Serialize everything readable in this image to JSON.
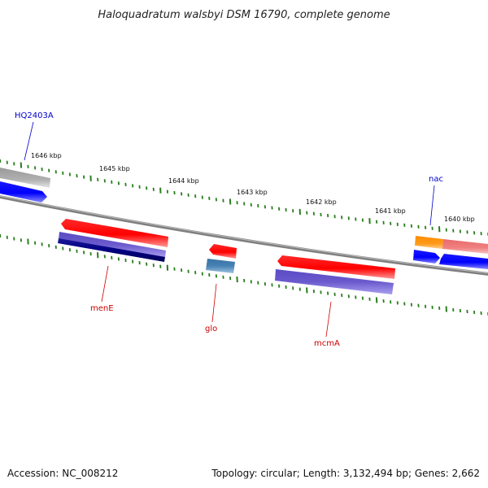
{
  "title": "Haloquadratum walsbyi DSM 16790, complete genome",
  "footer": {
    "accession": "Accession: NC_008212",
    "summary": "Topology: circular; Length: 3,132,494 bp; Genes: 2,662"
  },
  "tick_labels": [
    "1646 kbp",
    "1645 kbp",
    "1644 kbp",
    "1643 kbp",
    "1642 kbp",
    "1641 kbp",
    "1640 kbp"
  ],
  "genes": [
    {
      "name": "HQ2403A",
      "color": "#0000cc"
    },
    {
      "name": "menE",
      "color": "#cc0000"
    },
    {
      "name": "glo",
      "color": "#cc0000"
    },
    {
      "name": "mcmA",
      "color": "#cc0000"
    },
    {
      "name": "nac",
      "color": "#0000cc"
    }
  ],
  "colors": {
    "backbone": "#7f7f7f",
    "tick": "#2a7d1e",
    "forward_cds": "#ff0000",
    "reverse_cds": "#0000ff",
    "feature_purple": "#6a5acd",
    "feature_navy": "#000080",
    "feature_steelblue": "#4682b4",
    "feature_orange": "#ff8c00",
    "feature_salmon": "#f08080",
    "feature_gray": "#a9a9a9"
  }
}
